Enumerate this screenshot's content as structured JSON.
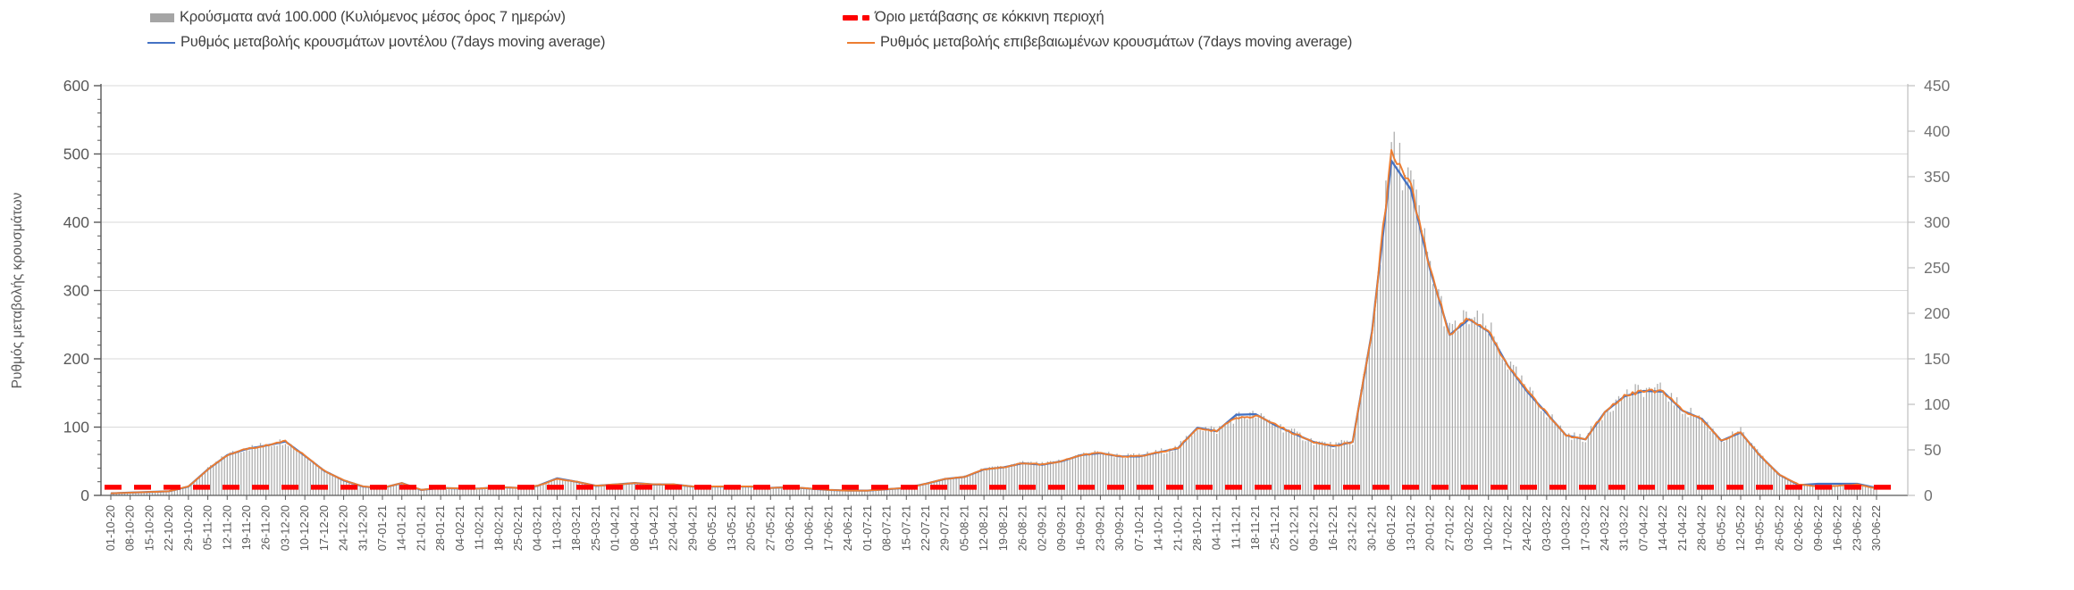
{
  "legend": {
    "bars_label": "Κρούσματα ανά 100.000 (Κυλιόμενος μέσος όρος 7 ημερών)",
    "threshold_label": "Όριο μετάβασης σε κόκκινη περιοχή",
    "model_label": "Ρυθμός μεταβολής κρουσμάτων μοντέλου (7days moving average)",
    "confirmed_label": "Ρυθμός μεταβολής επιβεβαιωμένων κρουσμάτων (7days moving average)"
  },
  "colors": {
    "bars": "#a5a5a5",
    "model_line": "#4472c4",
    "confirmed_line": "#ed7d31",
    "threshold": "#fe0000",
    "gridline": "#d9d9d9",
    "axis_line": "#595959",
    "left_tick_text": "#595959",
    "right_tick_text": "#737373",
    "x_tick_text": "#595959"
  },
  "chart_data": {
    "type": "bar",
    "subtype": "combo-bar-and-lines",
    "title": "",
    "left_axis": {
      "label": "Ρυθμός μεταβολής κρουσμάτων",
      "min": 0,
      "max": 600,
      "ticks": [
        0,
        100,
        200,
        300,
        400,
        500,
        600
      ],
      "minor_tick_step": 20
    },
    "right_axis": {
      "label": "",
      "min": 0,
      "max": 450,
      "ticks": [
        0,
        50,
        100,
        150,
        200,
        250,
        300,
        350,
        400,
        450
      ]
    },
    "grid": true,
    "legend_position": "top",
    "x_tick_interval_days": 7,
    "x": [
      "01-10-20",
      "08-10-20",
      "15-10-20",
      "22-10-20",
      "29-10-20",
      "05-11-20",
      "12-11-20",
      "19-11-20",
      "26-11-20",
      "03-12-20",
      "10-12-20",
      "17-12-20",
      "24-12-20",
      "31-12-20",
      "07-01-21",
      "14-01-21",
      "21-01-21",
      "28-01-21",
      "04-02-21",
      "11-02-21",
      "18-02-21",
      "25-02-21",
      "04-03-21",
      "11-03-21",
      "18-03-21",
      "25-03-21",
      "01-04-21",
      "08-04-21",
      "15-04-21",
      "22-04-21",
      "29-04-21",
      "06-05-21",
      "13-05-21",
      "20-05-21",
      "27-05-21",
      "03-06-21",
      "10-06-21",
      "17-06-21",
      "24-06-21",
      "01-07-21",
      "08-07-21",
      "15-07-21",
      "22-07-21",
      "29-07-21",
      "05-08-21",
      "12-08-21",
      "19-08-21",
      "26-08-21",
      "02-09-21",
      "09-09-21",
      "16-09-21",
      "23-09-21",
      "30-09-21",
      "07-10-21",
      "14-10-21",
      "21-10-21",
      "28-10-21",
      "04-11-21",
      "11-11-21",
      "18-11-21",
      "25-11-21",
      "02-12-21",
      "09-12-21",
      "16-12-21",
      "23-12-21",
      "30-12-21",
      "06-01-22",
      "13-01-22",
      "20-01-22",
      "27-01-22",
      "03-02-22",
      "10-02-22",
      "17-02-22",
      "24-02-22",
      "03-03-22",
      "10-03-22",
      "17-03-22",
      "24-03-22",
      "31-03-22",
      "07-04-22",
      "14-04-22",
      "21-04-22",
      "28-04-22",
      "05-05-22",
      "12-05-22",
      "19-05-22",
      "26-05-22",
      "02-06-22",
      "09-06-22",
      "16-06-22",
      "23-06-22",
      "30-06-22"
    ],
    "series": [
      {
        "name": "Κρούσματα ανά 100.000 (Κυλιόμενος μέσος όρος 7 ημερών)",
        "type": "bar",
        "axis": "right",
        "note": "daily thin gray bars; weekly sampled values in right-axis units",
        "values": [
          2,
          3,
          4,
          5,
          10,
          29,
          44,
          51,
          55,
          59,
          44,
          27,
          17,
          10,
          8,
          14,
          6,
          8,
          8,
          8,
          9,
          8,
          11,
          18,
          15,
          11,
          12,
          14,
          12,
          12,
          10,
          10,
          10,
          10,
          8,
          9,
          8,
          6,
          5,
          5,
          7,
          8,
          13,
          18,
          20,
          29,
          31,
          35,
          34,
          38,
          44,
          47,
          43,
          43,
          47,
          52,
          74,
          71,
          86,
          87,
          77,
          68,
          59,
          54,
          59,
          180,
          375,
          341,
          248,
          176,
          194,
          180,
          143,
          114,
          90,
          66,
          62,
          92,
          109,
          115,
          114,
          93,
          84,
          60,
          69,
          44,
          23,
          12,
          10,
          11,
          12,
          8
        ]
      },
      {
        "name": "Ρυθμός μεταβολής κρουσμάτων μοντέλου (7days moving average)",
        "type": "line",
        "axis": "left",
        "color": "#4472c4",
        "values": [
          3,
          4,
          5,
          6,
          13,
          38,
          59,
          68,
          73,
          79,
          58,
          36,
          22,
          13,
          11,
          18,
          8,
          11,
          10,
          10,
          12,
          11,
          14,
          25,
          20,
          14,
          16,
          18,
          16,
          16,
          13,
          13,
          13,
          13,
          11,
          12,
          10,
          8,
          7,
          7,
          9,
          11,
          17,
          24,
          27,
          38,
          41,
          47,
          45,
          50,
          59,
          62,
          57,
          57,
          63,
          69,
          99,
          94,
          118,
          119,
          103,
          90,
          78,
          72,
          78,
          240,
          490,
          448,
          330,
          235,
          258,
          240,
          190,
          152,
          120,
          88,
          82,
          122,
          145,
          153,
          152,
          124,
          112,
          80,
          92,
          58,
          30,
          15,
          17,
          17,
          17,
          11
        ]
      },
      {
        "name": "Ρυθμός μεταβολής επιβεβαιωμένων κρουσμάτων (7days moving average)",
        "type": "line",
        "axis": "left",
        "color": "#ed7d31",
        "values": [
          3,
          4,
          5,
          6,
          13,
          38,
          59,
          68,
          73,
          79,
          58,
          36,
          22,
          13,
          11,
          18,
          8,
          11,
          10,
          10,
          12,
          11,
          14,
          24,
          20,
          14,
          16,
          18,
          16,
          16,
          13,
          13,
          13,
          13,
          11,
          12,
          10,
          8,
          7,
          7,
          9,
          11,
          17,
          24,
          27,
          38,
          41,
          47,
          45,
          50,
          59,
          62,
          57,
          57,
          63,
          69,
          99,
          94,
          114,
          116,
          103,
          90,
          78,
          72,
          78,
          240,
          500,
          455,
          330,
          235,
          258,
          240,
          190,
          152,
          120,
          88,
          82,
          122,
          145,
          153,
          152,
          124,
          112,
          80,
          92,
          58,
          30,
          16,
          13,
          14,
          16,
          10
        ]
      },
      {
        "name": "Όριο μετάβασης σε κόκκινη περιοχή",
        "type": "threshold-line",
        "axis": "left",
        "color": "#fe0000",
        "value": 12
      }
    ]
  }
}
